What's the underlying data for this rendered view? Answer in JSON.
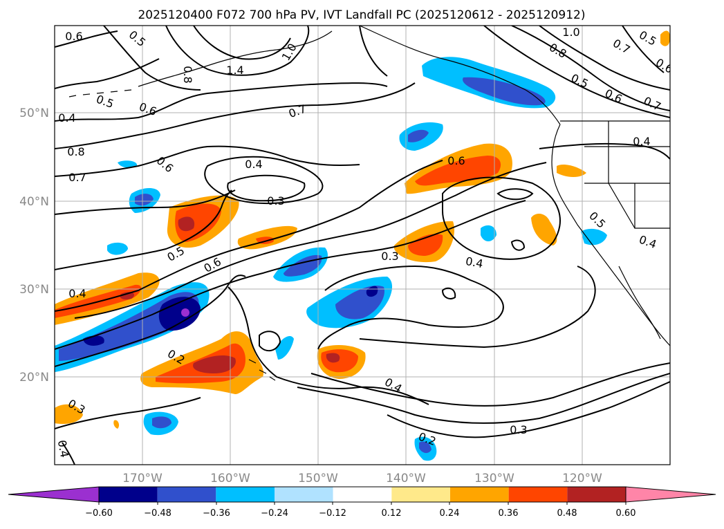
{
  "title": "2025120400 F072 700 hPa PV, IVT Landfall PC (2025120612 - 2025120912)",
  "lat_labels": [
    "50°N",
    "40°N",
    "30°N",
    "20°N"
  ],
  "lon_labels": [
    "170°W",
    "160°W",
    "150°W",
    "140°W",
    "130°W",
    "120°W"
  ],
  "contour_labels": [
    "0.6",
    "0.5",
    "1.4",
    "1.0",
    "0.8",
    "1.0",
    "0.8",
    "0.7",
    "0.5",
    "0.6",
    "0.5",
    "0.6",
    "0.4",
    "0.5",
    "0.6",
    "0.7",
    "0.8",
    "0.6",
    "0.4",
    "0.4",
    "0.7",
    "0.3",
    "0.6",
    "0.5",
    "0.3",
    "0.4",
    "0.6",
    "0.4",
    "0.2",
    "0.4",
    "0.3",
    "0.3",
    "0.2",
    "0.4",
    "0.5",
    "0.4",
    "0.7"
  ],
  "colorbar": {
    "ticks": [
      "−0.60",
      "−0.48",
      "−0.36",
      "−0.24",
      "−0.12",
      "0.12",
      "0.24",
      "0.36",
      "0.48",
      "0.60"
    ],
    "colors": [
      "#9b30d0",
      "#00008b",
      "#3050cc",
      "#00bfff",
      "#b0e2ff",
      "#ffffff",
      "#ffe98a",
      "#ffa500",
      "#ff4500",
      "#b22222",
      "#ff85a8",
      "#ff85a8"
    ]
  },
  "colors": {
    "neg_extreme": "#9b30d0",
    "neg_strong": "#00008b",
    "neg_mid": "#3050cc",
    "neg_light": "#00bfff",
    "neg_faint": "#b0e2ff",
    "pos_faint": "#ffe98a",
    "pos_light": "#ffa500",
    "pos_mid": "#ff4500",
    "pos_strong": "#b22222",
    "pos_extreme": "#ff85a8"
  }
}
